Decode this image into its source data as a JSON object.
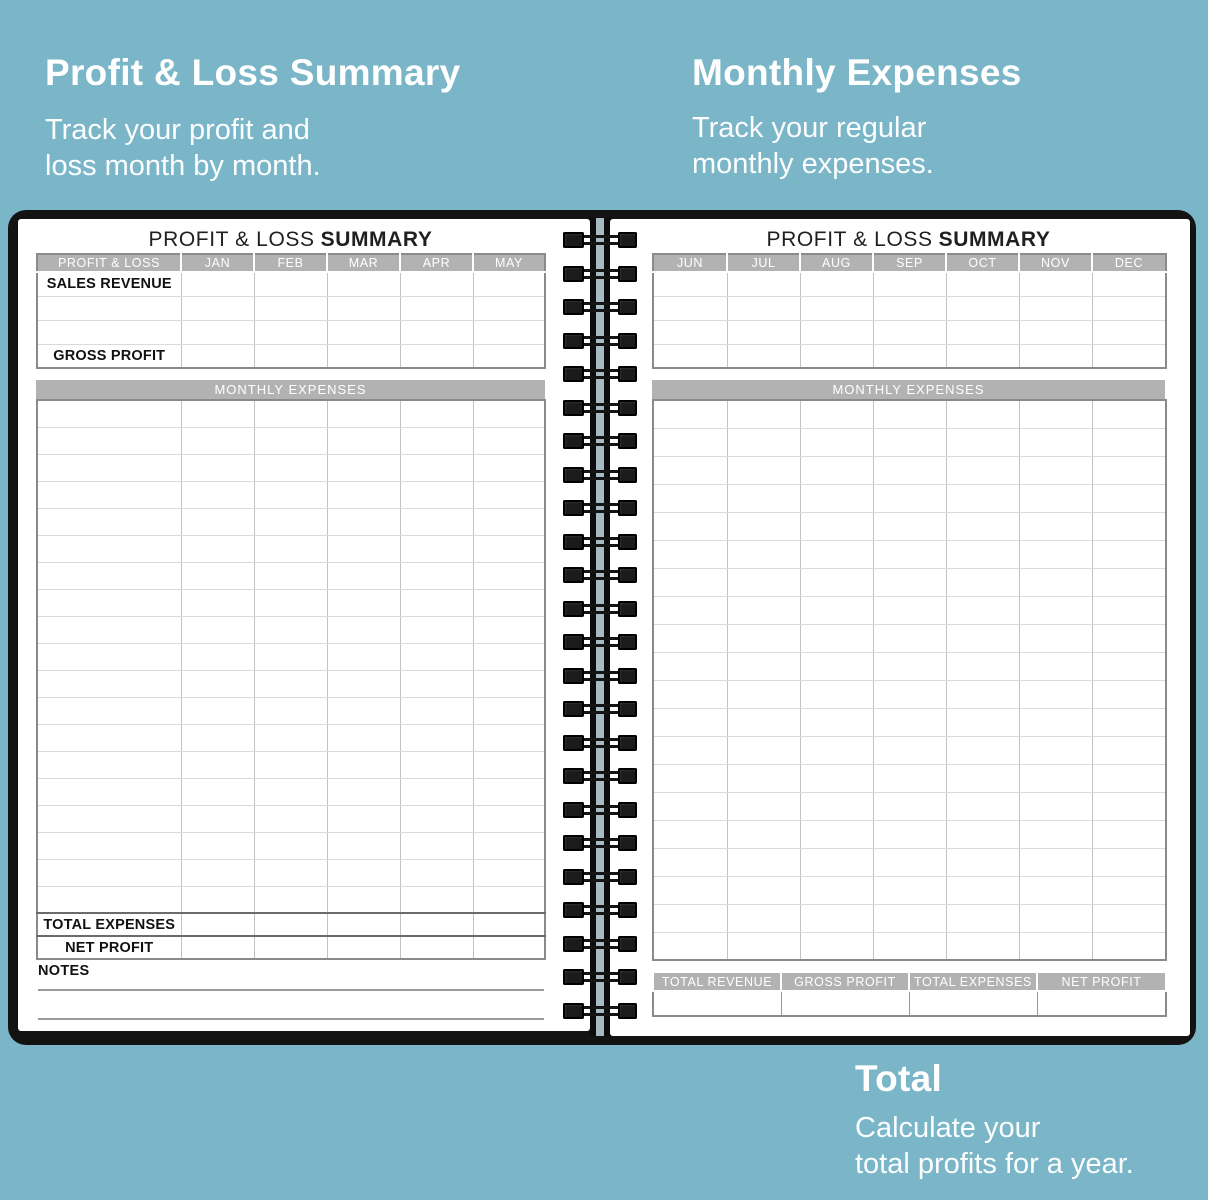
{
  "colors": {
    "background": "#7ab6c8",
    "cover_black": "#131313",
    "band_gray": "#b2b2b2",
    "page_white": "#ffffff"
  },
  "captions": {
    "profit_loss": {
      "title": "Profit & Loss Summary",
      "lines": [
        "Track your profit and",
        "loss month by month."
      ]
    },
    "monthly_expenses": {
      "title": "Monthly Expenses",
      "lines": [
        "Track your regular",
        "monthly expenses."
      ]
    },
    "total": {
      "title": "Total",
      "lines": [
        "Calculate your",
        "total profits for a year."
      ]
    }
  },
  "left_page": {
    "title_regular": "PROFIT & LOSS",
    "title_bold": "SUMMARY",
    "pl_header": [
      "PROFIT & LOSS",
      "JAN",
      "FEB",
      "MAR",
      "APR",
      "MAY"
    ],
    "pl_row_labels": [
      "SALES REVENUE",
      "",
      "",
      "GROSS PROFIT"
    ],
    "expenses_band": "MONTHLY EXPENSES",
    "expenses_blank_rows": 19,
    "total_row_labels": [
      "TOTAL EXPENSES",
      "NET PROFIT"
    ],
    "notes_label": "NOTES",
    "notes_line_count": 2
  },
  "right_page": {
    "title_regular": "PROFIT & LOSS",
    "title_bold": "SUMMARY",
    "pl_header": [
      "JUN",
      "JUL",
      "AUG",
      "SEP",
      "OCT",
      "NOV",
      "DEC"
    ],
    "pl_blank_rows": 4,
    "expenses_band": "MONTHLY EXPENSES",
    "expenses_blank_rows": 20,
    "summary_header": [
      "TOTAL REVENUE",
      "GROSS PROFIT",
      "TOTAL EXPENSES",
      "NET PROFIT"
    ],
    "summary_blank_rows": 1
  },
  "binding": {
    "coil_count": 24
  }
}
